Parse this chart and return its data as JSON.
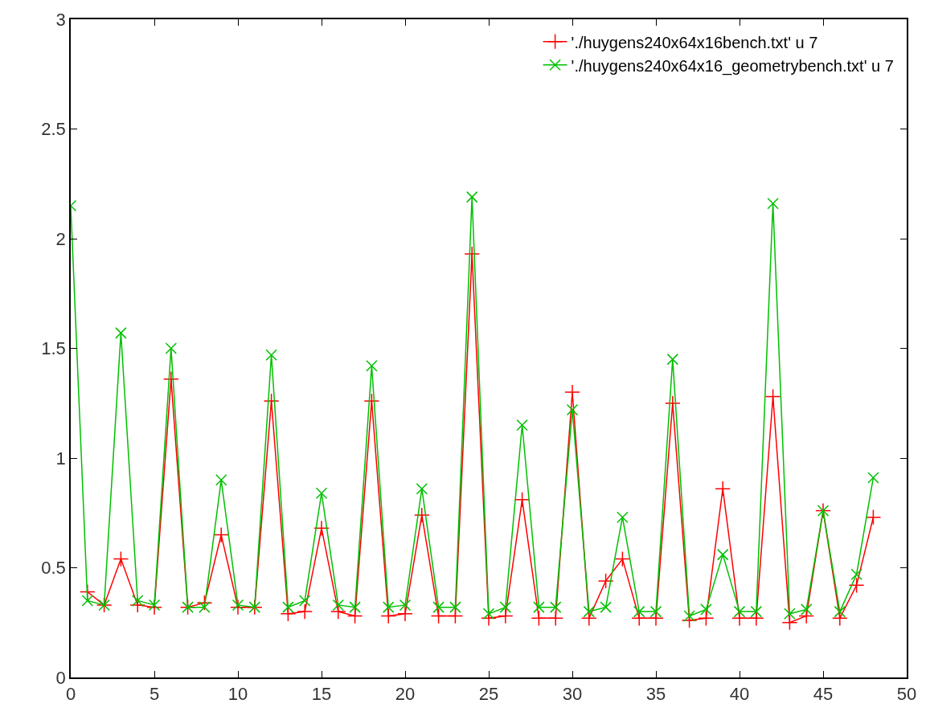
{
  "chart_data": {
    "type": "line",
    "x": [
      0,
      1,
      2,
      3,
      4,
      5,
      6,
      7,
      8,
      9,
      10,
      11,
      12,
      13,
      14,
      15,
      16,
      17,
      18,
      19,
      20,
      21,
      22,
      23,
      24,
      25,
      26,
      27,
      28,
      29,
      30,
      31,
      32,
      33,
      34,
      35,
      36,
      37,
      38,
      39,
      40,
      41,
      42,
      43,
      44,
      45,
      46,
      47,
      48
    ],
    "series": [
      {
        "name": "'./huygens240x64x16bench.txt' u 7",
        "color": "#ff0000",
        "marker": "cross",
        "values": [
          null,
          0.39,
          0.33,
          0.54,
          0.33,
          0.32,
          1.36,
          0.32,
          0.34,
          0.65,
          0.32,
          0.32,
          1.26,
          0.29,
          0.3,
          0.68,
          0.3,
          0.28,
          1.26,
          0.28,
          0.29,
          0.74,
          0.28,
          0.28,
          1.93,
          0.27,
          0.28,
          0.81,
          0.27,
          0.27,
          1.3,
          0.27,
          0.44,
          0.54,
          0.27,
          0.27,
          1.25,
          0.26,
          0.27,
          0.86,
          0.27,
          0.27,
          1.28,
          0.25,
          0.28,
          0.76,
          0.27,
          0.42,
          0.73
        ]
      },
      {
        "name": "'./huygens240x64x16_geometrybench.txt' u 7",
        "color": "#00c000",
        "marker": "x",
        "values": [
          2.15,
          0.35,
          0.33,
          1.57,
          0.35,
          0.33,
          1.5,
          0.32,
          0.32,
          0.9,
          0.33,
          0.32,
          1.47,
          0.32,
          0.35,
          0.84,
          0.33,
          0.32,
          1.42,
          0.32,
          0.33,
          0.86,
          0.32,
          0.32,
          2.19,
          0.29,
          0.32,
          1.15,
          0.32,
          0.32,
          1.22,
          0.3,
          0.32,
          0.73,
          0.3,
          0.3,
          1.45,
          0.28,
          0.31,
          0.56,
          0.3,
          0.3,
          2.16,
          0.29,
          0.31,
          0.76,
          0.3,
          0.47,
          0.91
        ]
      }
    ],
    "xlim": [
      0,
      50
    ],
    "xticks": [
      0,
      5,
      10,
      15,
      20,
      25,
      30,
      35,
      40,
      45,
      50
    ],
    "ylim": [
      0,
      3
    ],
    "yticks": [
      0,
      0.5,
      1,
      1.5,
      2,
      2.5,
      3
    ],
    "legend": "top right",
    "line_style": "solid"
  }
}
